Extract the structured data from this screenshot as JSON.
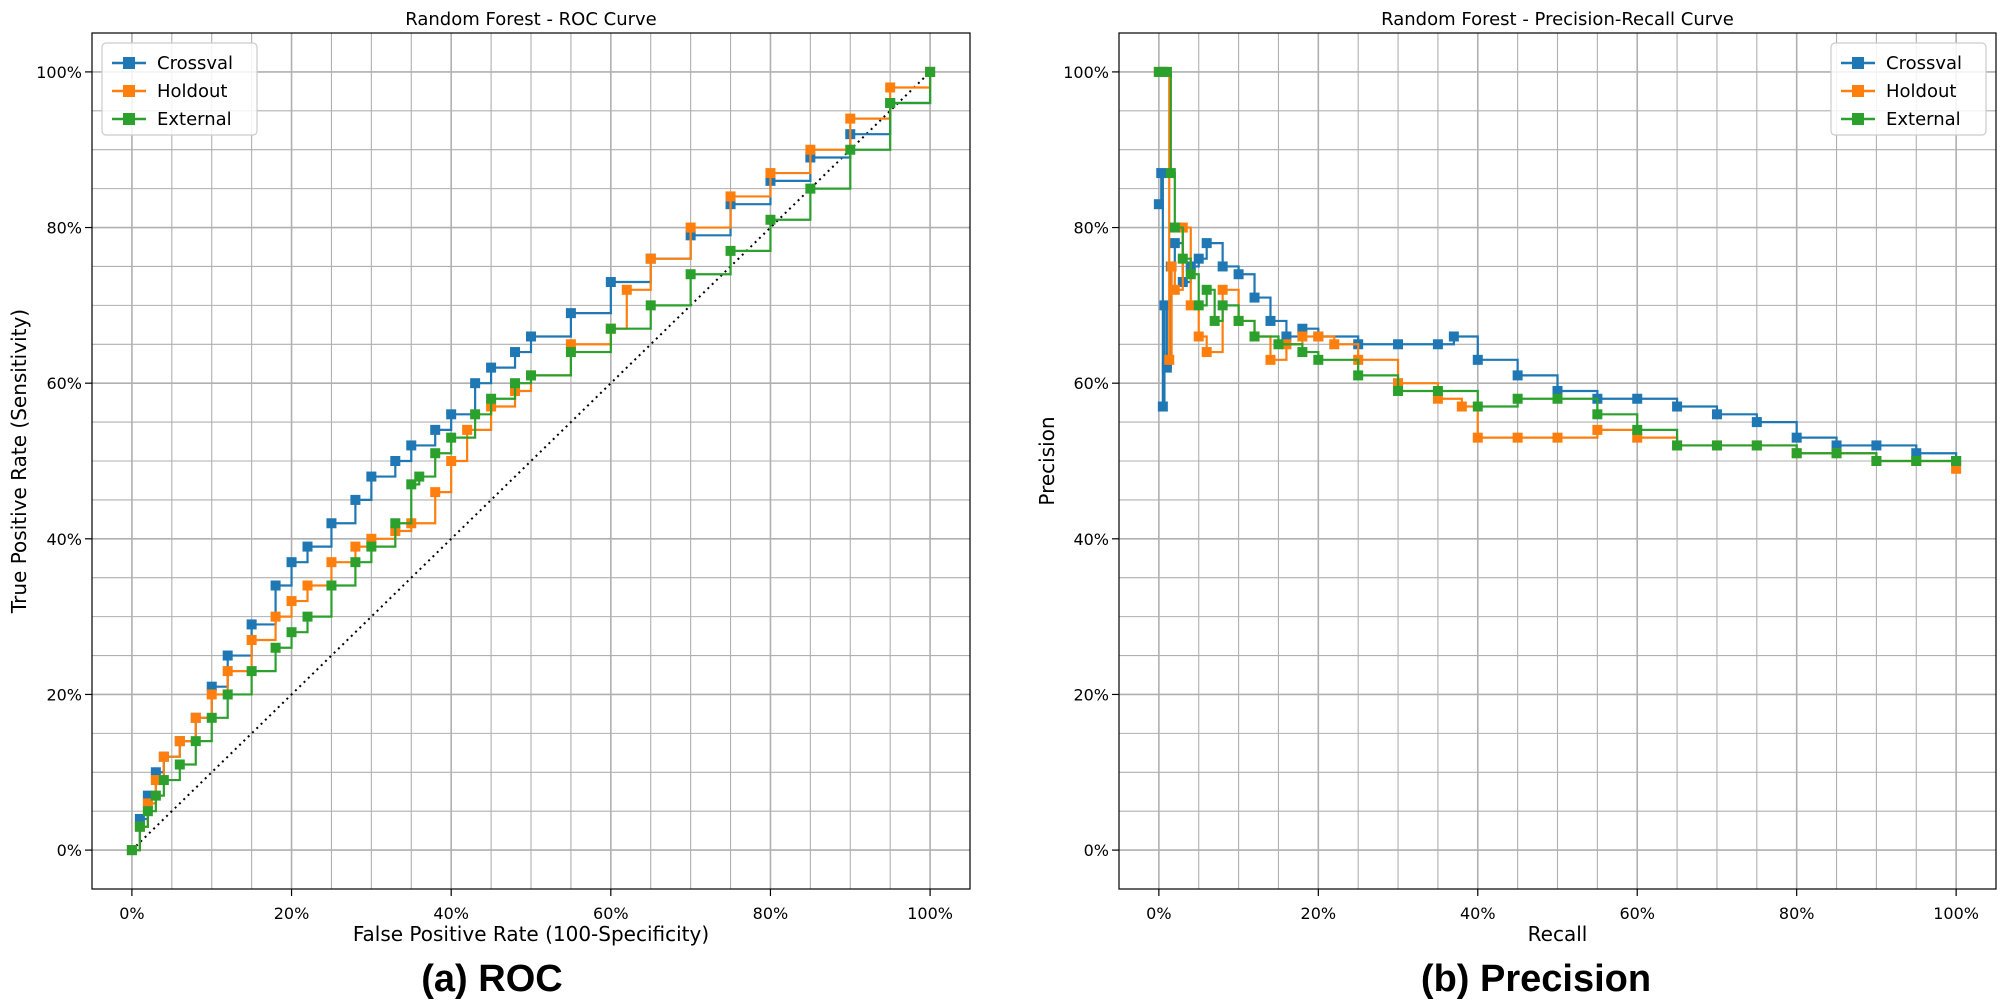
{
  "colors": {
    "crossval": "#1f77b4",
    "holdout": "#ff7f0e",
    "external": "#2ca02c",
    "grid": "#b0b0b0",
    "axis": "#000000"
  },
  "captions": {
    "roc": "(a) ROC",
    "pr": "(b) Precision"
  },
  "chart_data": [
    {
      "type": "line",
      "title": "Random Forest - ROC Curve",
      "xlabel": "False Positive Rate (100-Specificity)",
      "ylabel": "True Positive Rate (Sensitivity)",
      "xlim": [
        -5,
        105
      ],
      "ylim": [
        -5,
        105
      ],
      "xticks": [
        0,
        20,
        40,
        60,
        80,
        100
      ],
      "yticks": [
        0,
        20,
        40,
        60,
        80,
        100
      ],
      "tick_labels": [
        "0%",
        "20%",
        "40%",
        "60%",
        "80%",
        "100%"
      ],
      "grid": true,
      "legend_position": "top-left",
      "reference_line": {
        "name": "chance",
        "x": [
          0,
          100
        ],
        "y": [
          0,
          100
        ],
        "style": "dotted"
      },
      "series": [
        {
          "name": "Crossval",
          "color": "#1f77b4",
          "x": [
            0,
            1,
            2,
            3,
            4,
            6,
            8,
            10,
            12,
            15,
            18,
            20,
            22,
            25,
            28,
            30,
            33,
            35,
            38,
            40,
            43,
            45,
            48,
            50,
            55,
            60,
            65,
            70,
            75,
            80,
            85,
            90,
            95,
            100
          ],
          "y": [
            0,
            4,
            7,
            10,
            12,
            14,
            17,
            21,
            25,
            29,
            34,
            37,
            39,
            42,
            45,
            48,
            50,
            52,
            54,
            56,
            60,
            62,
            64,
            66,
            69,
            73,
            76,
            79,
            83,
            86,
            89,
            92,
            96,
            100
          ]
        },
        {
          "name": "Holdout",
          "color": "#ff7f0e",
          "x": [
            0,
            1,
            2,
            3,
            4,
            6,
            8,
            10,
            12,
            15,
            18,
            20,
            22,
            25,
            28,
            30,
            33,
            35,
            38,
            40,
            42,
            45,
            48,
            50,
            55,
            60,
            62,
            65,
            70,
            75,
            80,
            85,
            90,
            95,
            100
          ],
          "y": [
            0,
            3,
            6,
            9,
            12,
            14,
            17,
            20,
            23,
            27,
            30,
            32,
            34,
            37,
            39,
            40,
            41,
            42,
            46,
            50,
            54,
            57,
            59,
            61,
            65,
            67,
            72,
            76,
            80,
            84,
            87,
            90,
            94,
            98,
            100
          ]
        },
        {
          "name": "External",
          "color": "#2ca02c",
          "x": [
            0,
            1,
            2,
            3,
            4,
            6,
            8,
            10,
            12,
            15,
            18,
            20,
            22,
            25,
            28,
            30,
            33,
            35,
            36,
            38,
            40,
            43,
            45,
            48,
            50,
            55,
            60,
            65,
            70,
            75,
            80,
            85,
            90,
            95,
            100
          ],
          "y": [
            0,
            3,
            5,
            7,
            9,
            11,
            14,
            17,
            20,
            23,
            26,
            28,
            30,
            34,
            37,
            39,
            42,
            47,
            48,
            51,
            53,
            56,
            58,
            60,
            61,
            64,
            67,
            70,
            74,
            77,
            81,
            85,
            90,
            96,
            100
          ]
        }
      ]
    },
    {
      "type": "line",
      "title": "Random Forest - Precision-Recall Curve",
      "xlabel": "Recall",
      "ylabel": "Precision",
      "xlim": [
        -5,
        105
      ],
      "ylim": [
        -5,
        105
      ],
      "xticks": [
        0,
        20,
        40,
        60,
        80,
        100
      ],
      "yticks": [
        0,
        20,
        40,
        60,
        80,
        100
      ],
      "tick_labels": [
        "0%",
        "20%",
        "40%",
        "60%",
        "80%",
        "100%"
      ],
      "grid": true,
      "legend_position": "top-right",
      "series": [
        {
          "name": "Crossval",
          "color": "#1f77b4",
          "x": [
            0,
            0.3,
            0.5,
            0.7,
            1,
            1.5,
            2,
            3,
            4,
            5,
            6,
            8,
            10,
            12,
            14,
            16,
            18,
            20,
            25,
            30,
            35,
            37,
            40,
            45,
            50,
            55,
            60,
            65,
            70,
            75,
            80,
            85,
            90,
            95,
            100
          ],
          "y": [
            83,
            87,
            57,
            70,
            62,
            75,
            78,
            73,
            75,
            76,
            78,
            75,
            74,
            71,
            68,
            66,
            67,
            66,
            65,
            65,
            65,
            66,
            63,
            61,
            59,
            58,
            58,
            57,
            56,
            55,
            53,
            52,
            52,
            51,
            50
          ]
        },
        {
          "name": "Holdout",
          "color": "#ff7f0e",
          "x": [
            0,
            0.5,
            1,
            1.3,
            1.6,
            2,
            3,
            4,
            5,
            6,
            8,
            10,
            12,
            14,
            16,
            18,
            20,
            22,
            25,
            30,
            35,
            38,
            40,
            45,
            50,
            55,
            60,
            65,
            70,
            75,
            80,
            85,
            90,
            95,
            100
          ],
          "y": [
            100,
            100,
            100,
            63,
            75,
            72,
            80,
            70,
            66,
            64,
            72,
            68,
            66,
            63,
            65,
            66,
            66,
            65,
            63,
            60,
            58,
            57,
            53,
            53,
            53,
            54,
            53,
            52,
            52,
            52,
            51,
            51,
            50,
            50,
            49
          ]
        },
        {
          "name": "External",
          "color": "#2ca02c",
          "x": [
            0,
            0.5,
            1,
            1.5,
            2,
            3,
            4,
            5,
            6,
            7,
            8,
            10,
            12,
            15,
            18,
            20,
            25,
            30,
            35,
            40,
            45,
            50,
            55,
            60,
            65,
            70,
            75,
            80,
            85,
            90,
            95,
            100
          ],
          "y": [
            100,
            100,
            100,
            87,
            80,
            76,
            74,
            70,
            72,
            68,
            70,
            68,
            66,
            65,
            64,
            63,
            61,
            59,
            59,
            57,
            58,
            58,
            56,
            54,
            52,
            52,
            52,
            51,
            51,
            50,
            50,
            50
          ]
        }
      ]
    }
  ]
}
